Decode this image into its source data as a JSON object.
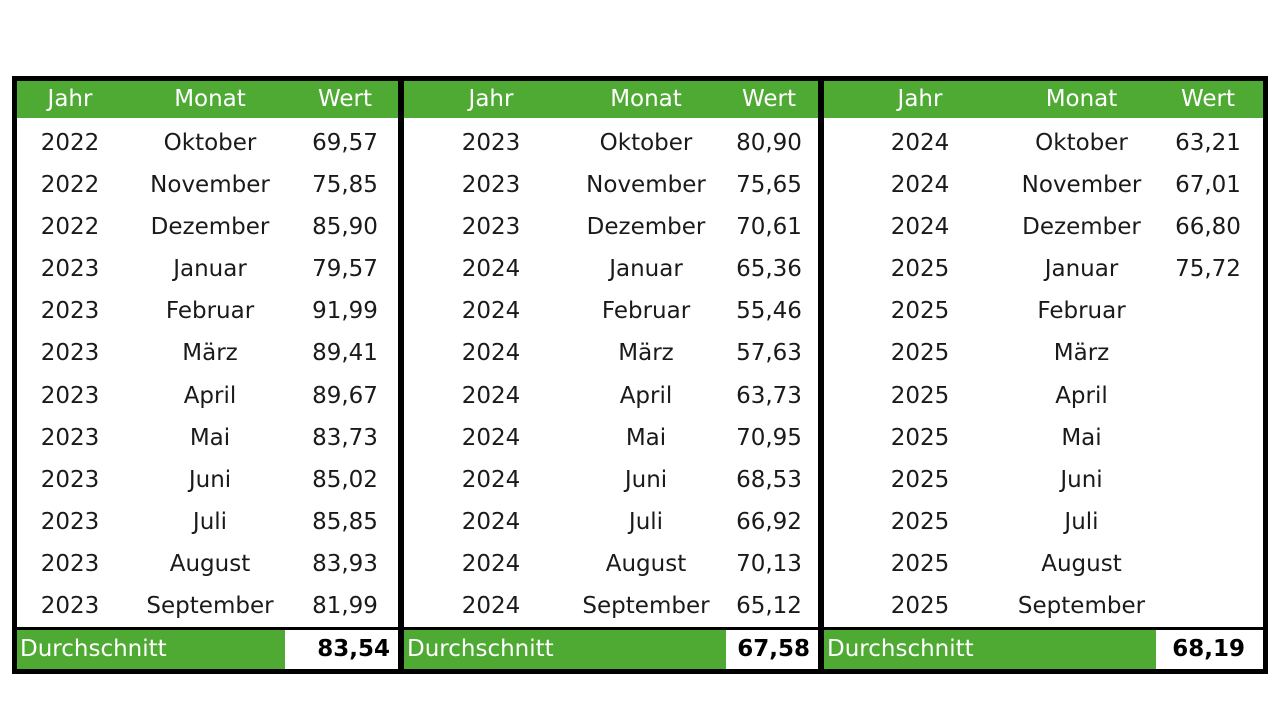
{
  "tables": [
    {
      "headers": {
        "year": "Jahr",
        "month": "Monat",
        "value": "Wert"
      },
      "rows": [
        {
          "year": "2022",
          "month": "Oktober",
          "value": "69,57"
        },
        {
          "year": "2022",
          "month": "November",
          "value": "75,85"
        },
        {
          "year": "2022",
          "month": "Dezember",
          "value": "85,90"
        },
        {
          "year": "2023",
          "month": "Januar",
          "value": "79,57"
        },
        {
          "year": "2023",
          "month": "Februar",
          "value": "91,99"
        },
        {
          "year": "2023",
          "month": "März",
          "value": "89,41"
        },
        {
          "year": "2023",
          "month": "April",
          "value": "89,67"
        },
        {
          "year": "2023",
          "month": "Mai",
          "value": "83,73"
        },
        {
          "year": "2023",
          "month": "Juni",
          "value": "85,02"
        },
        {
          "year": "2023",
          "month": "Juli",
          "value": "85,85"
        },
        {
          "year": "2023",
          "month": "August",
          "value": "83,93"
        },
        {
          "year": "2023",
          "month": "September",
          "value": "81,99"
        }
      ],
      "average_label": "Durchschnitt",
      "average_value": "83,54"
    },
    {
      "headers": {
        "year": "Jahr",
        "month": "Monat",
        "value": "Wert"
      },
      "rows": [
        {
          "year": "2023",
          "month": "Oktober",
          "value": "80,90"
        },
        {
          "year": "2023",
          "month": "November",
          "value": "75,65"
        },
        {
          "year": "2023",
          "month": "Dezember",
          "value": "70,61"
        },
        {
          "year": "2024",
          "month": "Januar",
          "value": "65,36"
        },
        {
          "year": "2024",
          "month": "Februar",
          "value": "55,46"
        },
        {
          "year": "2024",
          "month": "März",
          "value": "57,63"
        },
        {
          "year": "2024",
          "month": "April",
          "value": "63,73"
        },
        {
          "year": "2024",
          "month": "Mai",
          "value": "70,95"
        },
        {
          "year": "2024",
          "month": "Juni",
          "value": "68,53"
        },
        {
          "year": "2024",
          "month": "Juli",
          "value": "66,92"
        },
        {
          "year": "2024",
          "month": "August",
          "value": "70,13"
        },
        {
          "year": "2024",
          "month": "September",
          "value": "65,12"
        }
      ],
      "average_label": "Durchschnitt",
      "average_value": "67,58"
    },
    {
      "headers": {
        "year": "Jahr",
        "month": "Monat",
        "value": "Wert"
      },
      "rows": [
        {
          "year": "2024",
          "month": "Oktober",
          "value": "63,21"
        },
        {
          "year": "2024",
          "month": "November",
          "value": "67,01"
        },
        {
          "year": "2024",
          "month": "Dezember",
          "value": "66,80"
        },
        {
          "year": "2025",
          "month": "Januar",
          "value": "75,72"
        },
        {
          "year": "2025",
          "month": "Februar",
          "value": ""
        },
        {
          "year": "2025",
          "month": "März",
          "value": ""
        },
        {
          "year": "2025",
          "month": "April",
          "value": ""
        },
        {
          "year": "2025",
          "month": "Mai",
          "value": ""
        },
        {
          "year": "2025",
          "month": "Juni",
          "value": ""
        },
        {
          "year": "2025",
          "month": "Juli",
          "value": ""
        },
        {
          "year": "2025",
          "month": "August",
          "value": ""
        },
        {
          "year": "2025",
          "month": "September",
          "value": ""
        }
      ],
      "average_label": "Durchschnitt",
      "average_value": "68,19"
    }
  ],
  "colors": {
    "header_green": "#4faa34",
    "border": "#000000",
    "text": "#1a1a1a"
  }
}
